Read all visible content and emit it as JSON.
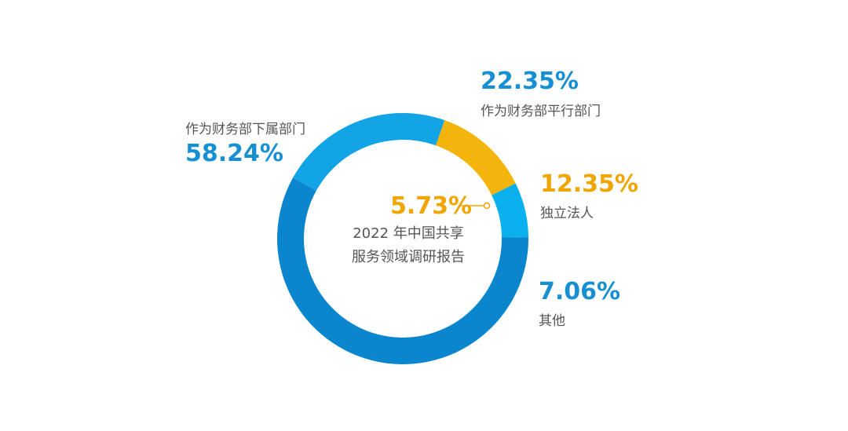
{
  "colors": {
    "dark_blue": "#0a86cf",
    "light_blue": "#13a4e6",
    "gold": "#f3b40c",
    "cyan": "#0bb0ee",
    "label_gold": "#f0a500",
    "label_blue": "#1690d2"
  },
  "chart_data": {
    "type": "pie",
    "donut": true,
    "title": "",
    "center_text": [
      "2022 年中国共享",
      "服务领域调研报告"
    ],
    "slices": [
      {
        "label": "作为财务部平行部门",
        "value": 22.35,
        "value_label": "22.35%",
        "color": "#13a4e6"
      },
      {
        "label": "独立法人",
        "value": 12.35,
        "value_label": "12.35%",
        "color": "#f3b40c"
      },
      {
        "label": "其他",
        "value": 7.06,
        "value_label": "7.06%",
        "color": "#0bb0ee"
      },
      {
        "label": "作为财务部下属部门",
        "value": 58.24,
        "value_label": "58.24%",
        "color": "#0a86cf"
      }
    ],
    "annotation": {
      "value": 5.73,
      "value_label": "5.73%"
    }
  }
}
